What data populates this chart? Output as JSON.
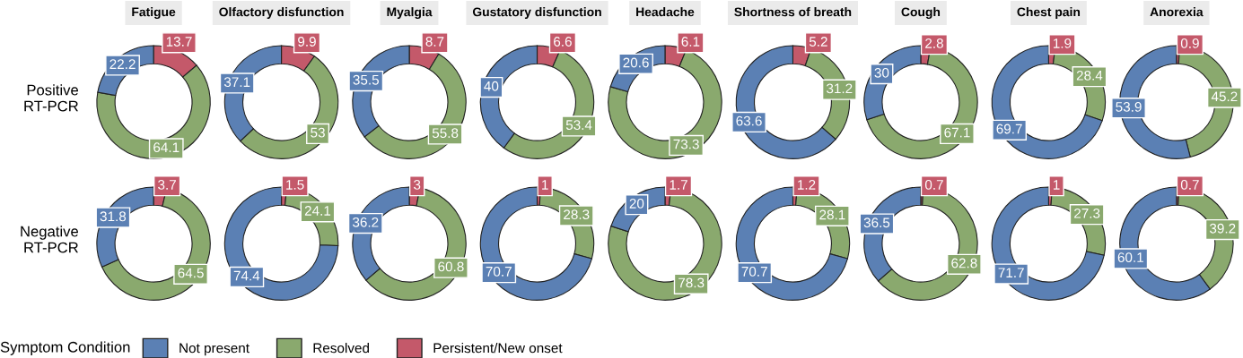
{
  "chart_data": [
    {
      "type": "donut",
      "title": "Fatigue",
      "ylabel": "Positive\nRT-PCR",
      "legend": "bottom",
      "legend_title": "Symptom Condition",
      "categories": [
        "Not present",
        "Resolved",
        "Persistent/New onset"
      ],
      "values": [
        22.2,
        64.1,
        13.7
      ],
      "colors": [
        "#5b80b4",
        "#8aa96e",
        "#c4596a"
      ],
      "data_labels": true
    },
    {
      "type": "donut",
      "title": "Olfactory disfunction",
      "categories": [
        null,
        null,
        null
      ],
      "values": [
        37.1,
        53,
        9.9
      ],
      "colors": [
        "#5b80b4",
        "#8aa96e",
        "#c4596a"
      ],
      "data_labels": true
    },
    {
      "type": "donut",
      "title": "Myalgia",
      "categories": [
        null,
        null,
        null
      ],
      "values": [
        35.5,
        55.8,
        8.7
      ],
      "colors": [
        "#5b80b4",
        "#8aa96e",
        "#c4596a"
      ],
      "data_labels": true
    },
    {
      "type": "donut",
      "title": "Gustatory disfunction",
      "categories": [
        null,
        null,
        null
      ],
      "values": [
        40,
        53.4,
        6.6
      ],
      "colors": [
        "#5b80b4",
        "#8aa96e",
        "#c4596a"
      ],
      "data_labels": true
    },
    {
      "type": "donut",
      "title": "Headache",
      "categories": [
        null,
        null,
        null
      ],
      "values": [
        20.6,
        73.3,
        6.1
      ],
      "colors": [
        "#5b80b4",
        "#8aa96e",
        "#c4596a"
      ],
      "data_labels": true
    },
    {
      "type": "donut",
      "title": "Shortness of breath",
      "categories": [
        null,
        null,
        null
      ],
      "values": [
        63.6,
        31.2,
        5.2
      ],
      "colors": [
        "#5b80b4",
        "#8aa96e",
        "#c4596a"
      ],
      "data_labels": true
    },
    {
      "type": "donut",
      "title": "Cough",
      "categories": [
        null,
        null,
        null
      ],
      "values": [
        30,
        67.1,
        2.8
      ],
      "colors": [
        "#5b80b4",
        "#8aa96e",
        "#c4596a"
      ],
      "data_labels": true
    },
    {
      "type": "donut",
      "title": "Chest pain",
      "categories": [
        null,
        null,
        null
      ],
      "values": [
        69.7,
        28.4,
        1.9
      ],
      "colors": [
        "#5b80b4",
        "#8aa96e",
        "#c4596a"
      ],
      "data_labels": true
    },
    {
      "type": "donut",
      "title": "Anorexia",
      "categories": [
        null,
        null,
        null
      ],
      "values": [
        53.9,
        45.2,
        0.9
      ],
      "colors": [
        "#5b80b4",
        "#8aa96e",
        "#c4596a"
      ],
      "data_labels": true
    },
    {
      "type": "donut",
      "ylabel": "Negative\nRT-PCR",
      "categories": [
        null,
        null,
        null
      ],
      "values": [
        31.8,
        64.5,
        3.7
      ],
      "colors": [
        "#5b80b4",
        "#8aa96e",
        "#c4596a"
      ],
      "data_labels": true
    },
    {
      "type": "donut",
      "categories": [
        null,
        null,
        null
      ],
      "values": [
        74.4,
        24.1,
        1.5
      ],
      "colors": [
        "#5b80b4",
        "#8aa96e",
        "#c4596a"
      ],
      "data_labels": true
    },
    {
      "type": "donut",
      "categories": [
        null,
        null,
        null
      ],
      "values": [
        36.2,
        60.8,
        3
      ],
      "colors": [
        "#5b80b4",
        "#8aa96e",
        "#c4596a"
      ],
      "data_labels": true
    },
    {
      "type": "donut",
      "categories": [
        null,
        null,
        null
      ],
      "values": [
        70.7,
        28.3,
        1
      ],
      "colors": [
        "#5b80b4",
        "#8aa96e",
        "#c4596a"
      ],
      "data_labels": true
    },
    {
      "type": "donut",
      "categories": [
        null,
        null,
        null
      ],
      "values": [
        20,
        78.3,
        1.7
      ],
      "colors": [
        "#5b80b4",
        "#8aa96e",
        "#c4596a"
      ],
      "data_labels": true
    },
    {
      "type": "donut",
      "categories": [
        null,
        null,
        null
      ],
      "values": [
        70.7,
        28.1,
        1.2
      ],
      "colors": [
        "#5b80b4",
        "#8aa96e",
        "#c4596a"
      ],
      "data_labels": true
    },
    {
      "type": "donut",
      "categories": [
        null,
        null,
        null
      ],
      "values": [
        36.5,
        62.8,
        0.7
      ],
      "colors": [
        "#5b80b4",
        "#8aa96e",
        "#c4596a"
      ],
      "data_labels": true
    },
    {
      "type": "donut",
      "categories": [
        null,
        null,
        null
      ],
      "values": [
        71.7,
        27.3,
        1
      ],
      "colors": [
        "#5b80b4",
        "#8aa96e",
        "#c4596a"
      ],
      "data_labels": true
    },
    {
      "type": "donut",
      "categories": [
        null,
        null,
        null
      ],
      "values": [
        60.1,
        39.2,
        0.7
      ],
      "colors": [
        "#5b80b4",
        "#8aa96e",
        "#c4596a"
      ],
      "data_labels": true
    }
  ]
}
